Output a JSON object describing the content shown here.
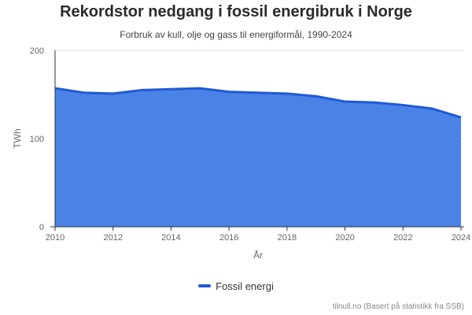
{
  "chart_data": {
    "type": "area",
    "title": "Rekordstor nedgang i fossil energibruk i Norge",
    "subtitle": "Forbruk av kull, olje og gass til energiformål, 1990-2024",
    "xlabel": "År",
    "ylabel": "TWh",
    "ylim": [
      0,
      200
    ],
    "xlim": [
      2010,
      2024
    ],
    "x_ticks": [
      2010,
      2012,
      2014,
      2016,
      2018,
      2020,
      2022,
      2024
    ],
    "y_ticks": [
      0,
      100,
      200
    ],
    "grid": true,
    "legend_position": "bottom",
    "series": [
      {
        "name": "Fossil energi",
        "color": "#1f5ad6",
        "fill": "#4a82e6",
        "x": [
          2010,
          2011,
          2012,
          2013,
          2014,
          2015,
          2016,
          2017,
          2018,
          2019,
          2020,
          2021,
          2022,
          2023,
          2024
        ],
        "values": [
          157,
          152,
          151,
          155,
          156,
          157,
          153,
          152,
          151,
          148,
          142,
          141,
          138,
          134,
          124
        ]
      }
    ]
  },
  "footer": {
    "source": "tilnull.no (Basert på statistikk fra SSB)"
  }
}
